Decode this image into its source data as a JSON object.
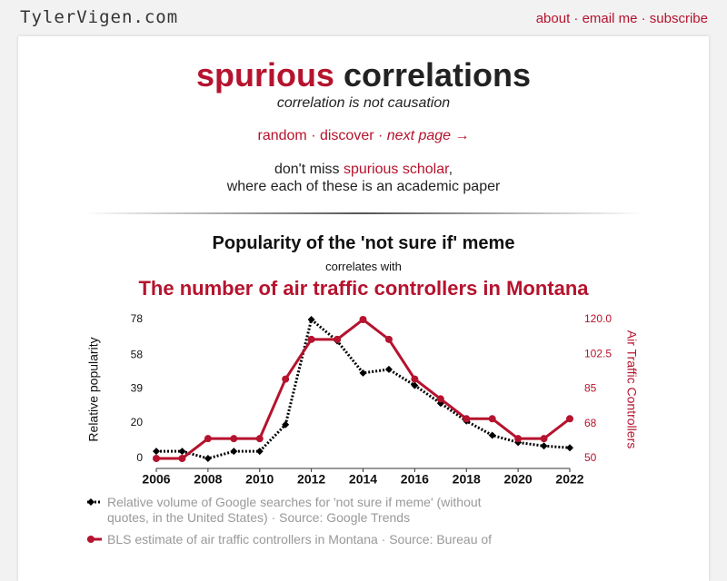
{
  "header": {
    "logo": "TylerVigen.com",
    "nav": [
      "about",
      "email me",
      "subscribe"
    ],
    "separator": "·"
  },
  "hero": {
    "title_accent": "spurious",
    "title_rest": "correlations",
    "subtitle": "correlation is not causation",
    "links": [
      "random",
      "discover",
      "next page →"
    ],
    "promo_before": "don't miss",
    "promo_link": "spurious scholar",
    "promo_after": ",",
    "promo_line2": "where each of these is an academic paper"
  },
  "chart_data": {
    "type": "line",
    "title": "Popularity of the 'not sure if' meme",
    "connector": "correlates with",
    "subtitle": "The number of air traffic controllers in Montana",
    "x": [
      2006,
      2007,
      2008,
      2009,
      2010,
      2011,
      2012,
      2013,
      2014,
      2015,
      2016,
      2017,
      2018,
      2019,
      2020,
      2021,
      2022
    ],
    "xlim": [
      2006,
      2022
    ],
    "xticks": [
      2006,
      2008,
      2010,
      2012,
      2014,
      2016,
      2018,
      2020,
      2022
    ],
    "ylabel": "Relative popularity",
    "ylim": [
      0,
      78
    ],
    "yticks": [
      0,
      20,
      39,
      58,
      78
    ],
    "y2label": "Air Traffic Controllers",
    "y2lim": [
      50,
      120
    ],
    "y2ticks": [
      50,
      {
        "value": 67.5,
        "label": "68"
      },
      85,
      102.5,
      {
        "value": 120,
        "label": "120.0"
      }
    ],
    "series": [
      {
        "name": "Relative volume of Google searches for 'not sure if meme' (without quotes, in the United States) · Source: Google Trends",
        "color": "#000000",
        "values": [
          4,
          4,
          0,
          4,
          4,
          19,
          78,
          66,
          48,
          50,
          41,
          31,
          21,
          13,
          9,
          7,
          6
        ]
      },
      {
        "name": "BLS estimate of air traffic controllers in Montana · Source: Bureau of",
        "color": "#b5132e",
        "axis": "y2",
        "values": [
          50,
          50,
          60,
          60,
          60,
          90,
          110,
          110,
          120,
          110,
          90,
          80,
          70,
          70,
          60,
          60,
          70
        ]
      }
    ]
  }
}
